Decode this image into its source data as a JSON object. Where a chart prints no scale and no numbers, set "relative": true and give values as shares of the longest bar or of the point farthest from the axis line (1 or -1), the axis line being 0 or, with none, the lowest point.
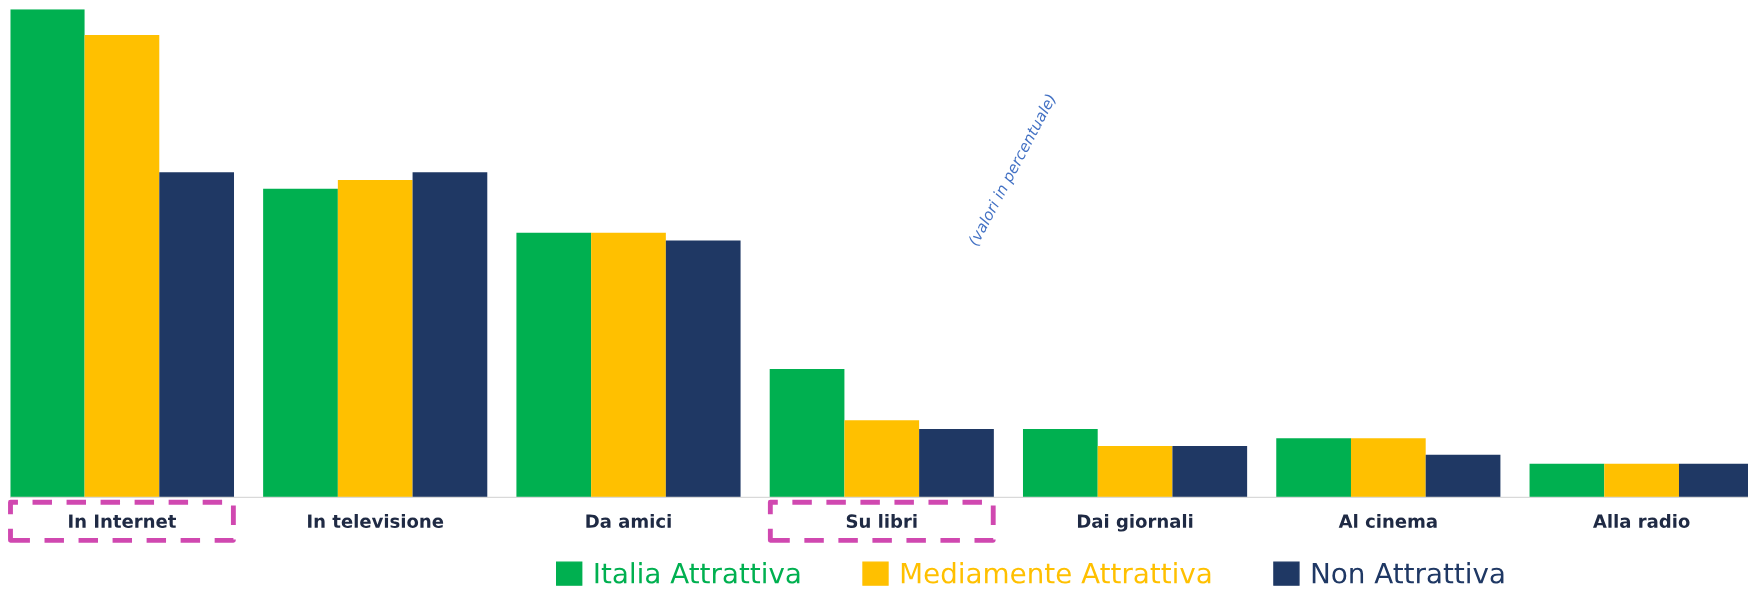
{
  "chart_data": {
    "type": "bar",
    "relative": true,
    "categories": [
      "In Internet",
      "In televisione",
      "Da amici",
      "Su libri",
      "Dai giornali",
      "Al cinema",
      "Alla radio"
    ],
    "series": [
      {
        "name": "Italia Attrattiva",
        "color": "#00b050",
        "values": [
          1.0,
          0.632,
          0.542,
          0.263,
          0.14,
          0.121,
          0.069
        ]
      },
      {
        "name": "Mediamente Attrattiva",
        "color": "#ffc000",
        "values": [
          0.947,
          0.65,
          0.542,
          0.158,
          0.105,
          0.121,
          0.069
        ]
      },
      {
        "name": "Non Attrattiva",
        "color": "#1f3864",
        "values": [
          0.666,
          0.666,
          0.526,
          0.14,
          0.105,
          0.087,
          0.069
        ]
      }
    ],
    "annotations": [
      "(valori in percentuale)"
    ],
    "legend": "bottom",
    "grid": false
  }
}
